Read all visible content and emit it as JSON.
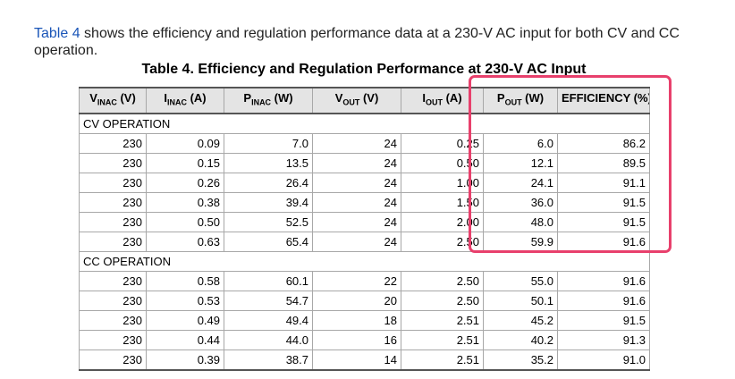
{
  "intro": {
    "link_text": "Table 4",
    "text": " shows the efficiency and regulation performance data at a 230-V AC input for both CV and CC operation."
  },
  "table": {
    "caption": "Table 4. Efficiency and Regulation Performance at 230-V AC Input",
    "headers": [
      {
        "main": "V",
        "sub": "INAC",
        "unit": " (V)"
      },
      {
        "main": "I",
        "sub": "INAC",
        "unit": " (A)"
      },
      {
        "main": "P",
        "sub": "INAC",
        "unit": " (W)"
      },
      {
        "main": "V",
        "sub": "OUT",
        "unit": " (V)"
      },
      {
        "main": "I",
        "sub": "OUT",
        "unit": " (A)"
      },
      {
        "main": "P",
        "sub": "OUT",
        "unit": " (W)"
      },
      {
        "main": "EFFICIENCY (%)",
        "sub": "",
        "unit": ""
      }
    ],
    "sections": [
      {
        "title": "CV OPERATION",
        "rows": [
          [
            "230",
            "0.09",
            "7.0",
            "24",
            "0.25",
            "6.0",
            "86.2"
          ],
          [
            "230",
            "0.15",
            "13.5",
            "24",
            "0.50",
            "12.1",
            "89.5"
          ],
          [
            "230",
            "0.26",
            "26.4",
            "24",
            "1.00",
            "24.1",
            "91.1"
          ],
          [
            "230",
            "0.38",
            "39.4",
            "24",
            "1.50",
            "36.0",
            "91.5"
          ],
          [
            "230",
            "0.50",
            "52.5",
            "24",
            "2.00",
            "48.0",
            "91.5"
          ],
          [
            "230",
            "0.63",
            "65.4",
            "24",
            "2.50",
            "59.9",
            "91.6"
          ]
        ]
      },
      {
        "title": "CC OPERATION",
        "rows": [
          [
            "230",
            "0.58",
            "60.1",
            "22",
            "2.50",
            "55.0",
            "91.6"
          ],
          [
            "230",
            "0.53",
            "54.7",
            "20",
            "2.50",
            "50.1",
            "91.6"
          ],
          [
            "230",
            "0.49",
            "49.4",
            "18",
            "2.51",
            "45.2",
            "91.5"
          ],
          [
            "230",
            "0.44",
            "44.0",
            "16",
            "2.51",
            "40.2",
            "91.3"
          ],
          [
            "230",
            "0.39",
            "38.7",
            "14",
            "2.51",
            "35.2",
            "91.0"
          ]
        ]
      }
    ]
  },
  "highlight": {
    "color": "#e8406c"
  }
}
